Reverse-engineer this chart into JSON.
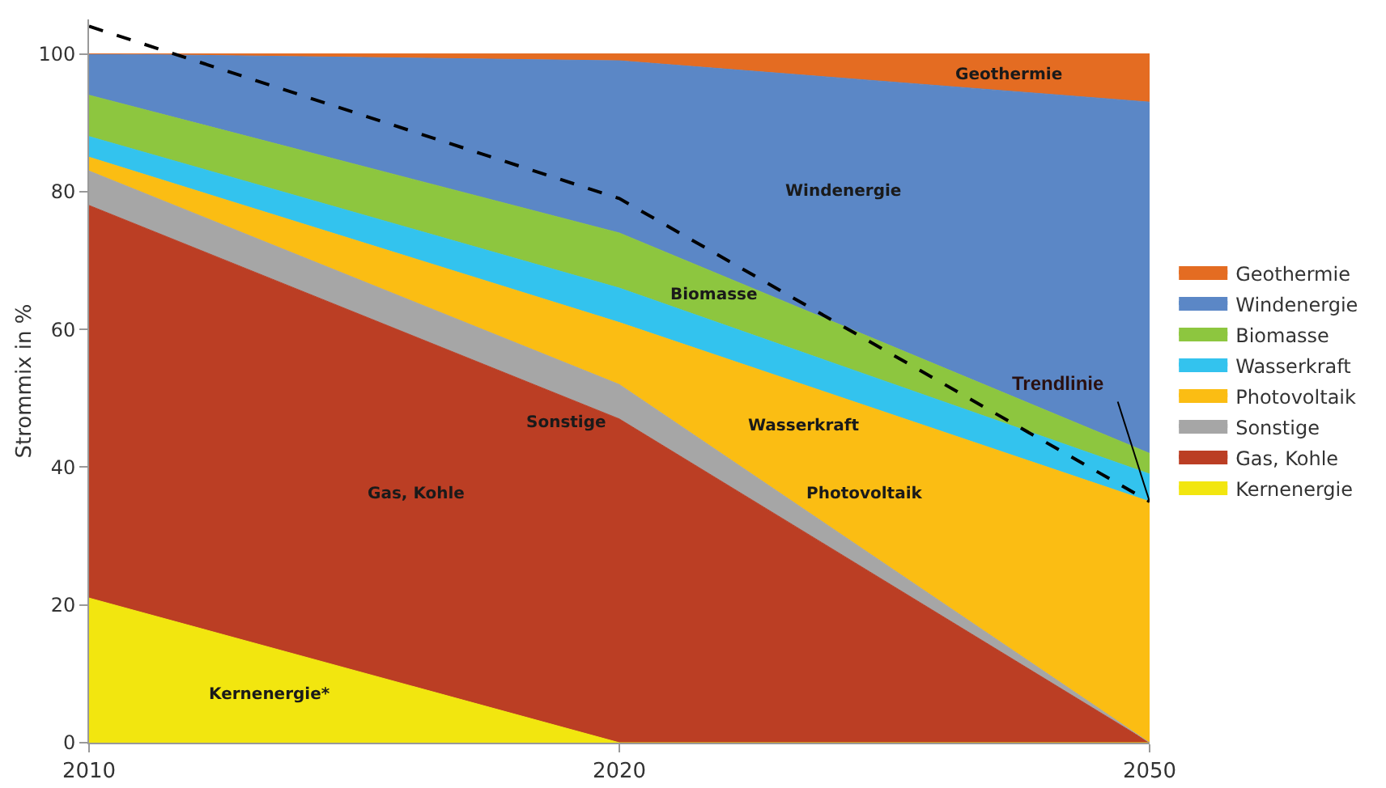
{
  "chart_data": {
    "type": "area",
    "stacked": true,
    "ylabel": "Strommix in %",
    "categories": [
      "2010",
      "2020",
      "2050"
    ],
    "ylim": [
      0,
      105
    ],
    "yticks": [
      0,
      20,
      40,
      60,
      80,
      100
    ],
    "grid": false,
    "legend": "right",
    "marker": "none",
    "series": [
      {
        "name": "Kernenergie",
        "color": "#f2e60f",
        "values": [
          21,
          0,
          0
        ]
      },
      {
        "name": "Gas, Kohle",
        "color": "#bb3e24",
        "values": [
          57,
          47,
          0
        ]
      },
      {
        "name": "Sonstige",
        "color": "#a6a6a6",
        "values": [
          5,
          5,
          0
        ]
      },
      {
        "name": "Photovoltaik",
        "color": "#fbbd13",
        "values": [
          2,
          9,
          35
        ]
      },
      {
        "name": "Wasserkraft",
        "color": "#33c3ee",
        "values": [
          3,
          5,
          4
        ]
      },
      {
        "name": "Biomasse",
        "color": "#8dc63f",
        "values": [
          6,
          8,
          3
        ]
      },
      {
        "name": "Windenergie",
        "color": "#5b87c6",
        "values": [
          6,
          25,
          51
        ]
      },
      {
        "name": "Geothermie",
        "color": "#e46c22",
        "values": [
          0,
          1,
          7
        ]
      },
      {
        "type": "line",
        "color": "#000000",
        "line_style": "dashed",
        "values": [
          104,
          79,
          35
        ]
      }
    ],
    "annotations": [
      "Geothermie",
      "Windenergie",
      "Biomasse",
      "Wasserkraft",
      "Photovoltaik",
      "Sonstige",
      "Gas, Kohle",
      "Kernenergie*",
      {
        "text": "Trendlinie",
        "x": "2050",
        "y": 35
      }
    ]
  }
}
